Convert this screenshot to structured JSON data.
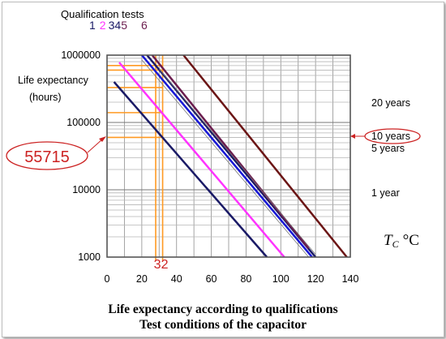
{
  "chart_data": {
    "type": "line",
    "title": "",
    "xlabel": "TC °C",
    "xlabel_main": "T",
    "xlabel_sub": "C",
    "xlabel_unit": "°C",
    "ylabel": "Life expectancy (hours)",
    "ylabel_line1": "Life expectancy",
    "ylabel_line2": "(hours)",
    "y_scale": "log",
    "xlim": [
      0,
      140
    ],
    "ylim": [
      1000,
      1000000
    ],
    "x_ticks": [
      0,
      20,
      40,
      60,
      80,
      100,
      120,
      140
    ],
    "x_tick_labels": [
      "0",
      "20",
      "40",
      "60",
      "80",
      "100",
      "120",
      "140"
    ],
    "y_ticks": [
      1000,
      10000,
      100000,
      1000000
    ],
    "y_tick_labels": [
      "1000",
      "10000",
      "100000",
      "1000000"
    ],
    "grid": true,
    "legend": {
      "title": "Qualification tests",
      "entries": [
        {
          "label": "1",
          "color": "#1a1a66"
        },
        {
          "label": "2",
          "color": "#ff33ff"
        },
        {
          "label": "3",
          "color": "#1a1a66"
        },
        {
          "label": "4",
          "color": "#1a1a66"
        },
        {
          "label": "5",
          "color": "#6b1d4e"
        },
        {
          "label": "6",
          "color": "#6b1d4e"
        }
      ]
    },
    "series": [
      {
        "color": "#1a1a66",
        "width": 2.5,
        "points": [
          [
            4,
            400000
          ],
          [
            92,
            1000
          ]
        ]
      },
      {
        "color": "#ff33ff",
        "width": 2.5,
        "points": [
          [
            7,
            780000
          ],
          [
            102,
            1000
          ]
        ]
      },
      {
        "color": "#1717d6",
        "width": 2.5,
        "points": [
          [
            20,
            1000000
          ],
          [
            118,
            1000
          ]
        ]
      },
      {
        "color": "#1a1a66",
        "width": 2.5,
        "points": [
          [
            23,
            1000000
          ],
          [
            120,
            1000
          ]
        ]
      },
      {
        "color": "#6b1d4e",
        "width": 2.5,
        "points": [
          [
            26,
            1000000
          ],
          [
            116,
            1350
          ]
        ]
      },
      {
        "color": "#6b1515",
        "width": 2.5,
        "points": [
          [
            44,
            1000000
          ],
          [
            138,
            1000
          ]
        ]
      },
      {
        "color": "#777777",
        "width": 0.8,
        "points": [
          [
            20,
            850000
          ],
          [
            116,
            1000
          ]
        ]
      },
      {
        "color": "#777777",
        "width": 0.8,
        "points": [
          [
            30,
            620000
          ],
          [
            120,
            1100
          ]
        ]
      }
    ],
    "reference_lines": {
      "color": "#ff9922",
      "vertical_x": [
        28,
        32
      ],
      "horizontal_y": [
        700000,
        600000,
        330000,
        140000,
        60000
      ]
    },
    "highlight": {
      "temperature": 32,
      "temperature_label": "32",
      "life_hours": 55715,
      "life_label": "55715",
      "color": "#cc2222"
    },
    "right_annotations": [
      {
        "text": "20 years",
        "y": 175200,
        "boxed": false
      },
      {
        "text": "10 years",
        "y": 87600,
        "boxed": true
      },
      {
        "text": "5 years",
        "y": 43800,
        "boxed": false
      },
      {
        "text": "1 year",
        "y": 8760,
        "boxed": false
      }
    ]
  },
  "caption": {
    "line1": "Life expectancy according to qualifications",
    "line2": "Test conditions of the capacitor"
  }
}
